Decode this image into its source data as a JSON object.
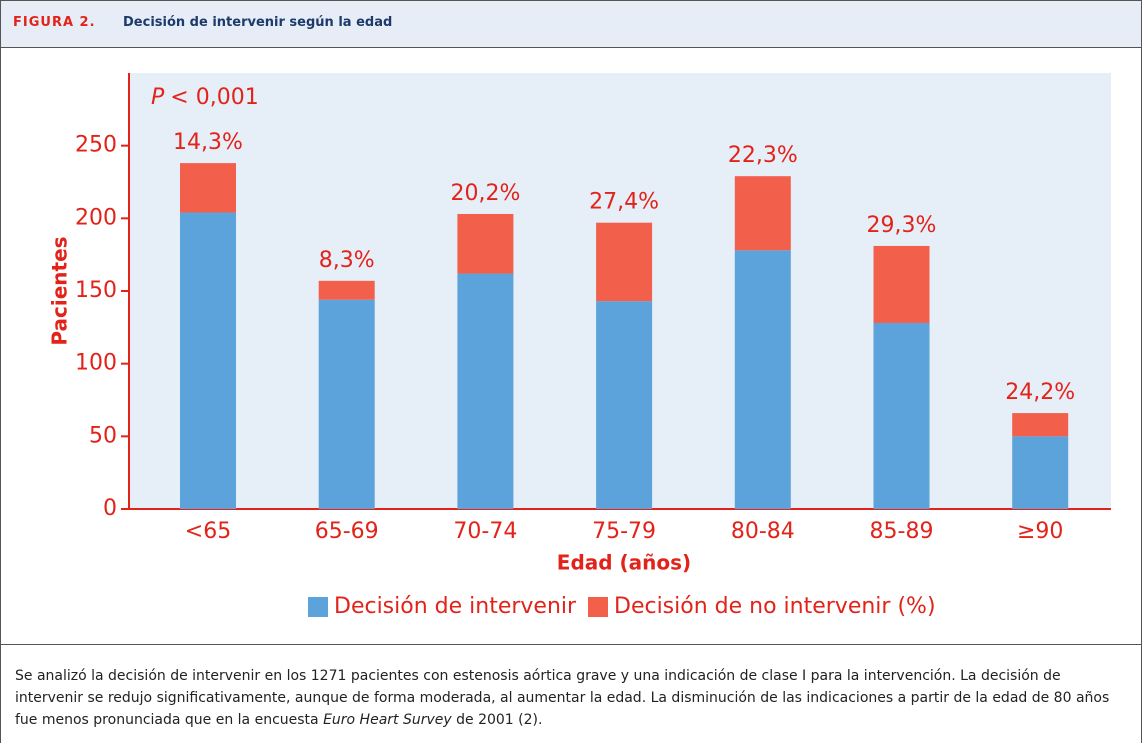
{
  "header": {
    "label": "FIGURA 2.",
    "title": "Decisión de intervenir según la edad"
  },
  "chart_data": {
    "type": "stacked_bar",
    "ylabel": "Pacientes",
    "xlabel": "Edad (años)",
    "p_value": {
      "symbol": "P",
      "text": "< 0,001"
    },
    "categories": [
      "<65",
      "65-69",
      "70-74",
      "75-79",
      "80-84",
      "85-89",
      "≥90"
    ],
    "series": [
      {
        "name": "Decisión de intervenir",
        "color": "#5ba3da",
        "values": [
          204,
          144,
          162,
          143,
          178,
          128,
          50
        ]
      },
      {
        "name": "Decisión de no intervenir (%)",
        "color": "#f2604b",
        "values": [
          34,
          13,
          41,
          54,
          51,
          53,
          16
        ]
      }
    ],
    "annotations": [
      "14,3%",
      "8,3%",
      "20,2%",
      "27,4%",
      "22,3%",
      "29,3%",
      "24,2%"
    ],
    "ylim": [
      0,
      300
    ],
    "yticks": [
      0,
      50,
      100,
      150,
      200,
      250
    ],
    "legend": "bottom"
  },
  "caption": {
    "parts": [
      "Se analizó la decisión de intervenir en los 1271 pacientes con estenosis aórtica grave y una indicación de clase I para la intervención. La decisión de intervenir se redujo significativamente, aunque de forma moderada, al aumentar la edad. La disminución de las indicaciones a partir de la edad de 80 años fue menos pronunciada que en la encuesta ",
      "Euro Heart Survey",
      " de 2001 (2)."
    ]
  }
}
